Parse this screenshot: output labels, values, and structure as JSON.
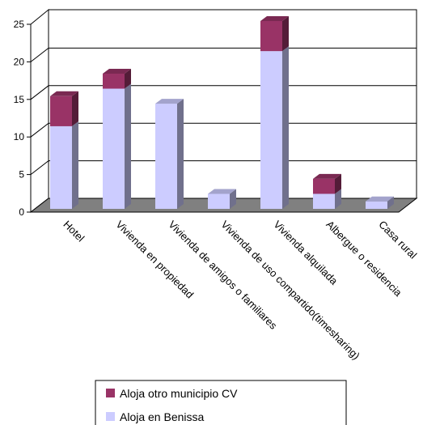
{
  "chart_data": {
    "type": "bar",
    "stacked": true,
    "three_d": true,
    "categories": [
      "Hotel",
      "Vivienda en propiedad",
      "Vivienda de amigos o familiares",
      "Vivienda de uso compartido(timesharing)",
      "Vivienda alquilada",
      "Albergue o residencia",
      "Casa rural"
    ],
    "series": [
      {
        "name": "Aloja en Benissa",
        "values": [
          11,
          16,
          14,
          2,
          21,
          2,
          1
        ],
        "color": "#ccccff"
      },
      {
        "name": "Aloja otro municipio CV",
        "values": [
          4,
          2,
          0,
          0,
          4,
          2,
          0
        ],
        "color": "#993366"
      }
    ],
    "ylim": [
      0,
      25
    ],
    "yticks": [
      "0",
      "5",
      "10",
      "15",
      "20",
      "25"
    ],
    "grid": true,
    "legend_position": "bottom"
  }
}
